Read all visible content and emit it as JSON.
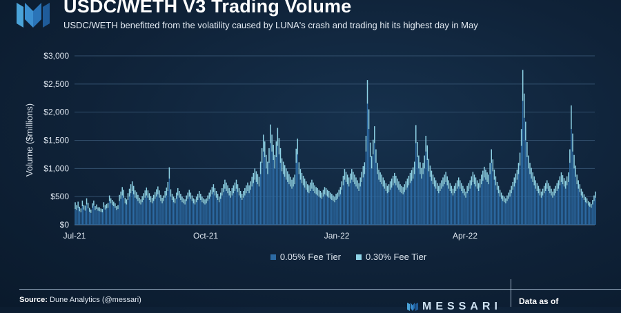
{
  "header": {
    "title": "USDC/WETH V3 Trading Volume",
    "subtitle": "USDC/WETH benefitted from the volatility caused by LUNA's crash and trading hit its highest day in May"
  },
  "colors": {
    "fee_005": "#2c6aa3",
    "fee_030": "#8fd3e6",
    "grid": "#33506e",
    "text": "#dfe7f0"
  },
  "footer": {
    "source_label": "Source:",
    "source_text": "Dune Analytics (@messari)",
    "brand": "MESSARI",
    "date_label": "Data as of"
  },
  "chart_data": {
    "type": "bar",
    "stacked": true,
    "ylabel": "Volume ($millions)",
    "ylim": [
      0,
      3000
    ],
    "yticks": [
      "$0",
      "$500",
      "$1,000",
      "$1,500",
      "$2,000",
      "$2,500",
      "$3,000"
    ],
    "ytick_values": [
      0,
      500,
      1000,
      1500,
      2000,
      2500,
      3000
    ],
    "x_ticks": [
      {
        "label": "Jul-21",
        "date": "2021-07-01"
      },
      {
        "label": "Oct-21",
        "date": "2021-10-01"
      },
      {
        "label": "Jan-22",
        "date": "2022-01-01"
      },
      {
        "label": "Apr-22",
        "date": "2022-04-01"
      }
    ],
    "x_range": [
      "2021-07-01",
      "2022-06-30"
    ],
    "grid": true,
    "legend_position": "bottom-center",
    "series": [
      {
        "name": "0.05% Fee Tier",
        "color": "#2c6aa3"
      },
      {
        "name": "0.30% Fee Tier",
        "color": "#8fd3e6"
      }
    ],
    "monthly_profile": [
      {
        "month": "2021-07",
        "fee_005": [
          280,
          260,
          300,
          240,
          220,
          330,
          270,
          250,
          360,
          290,
          230,
          210,
          300,
          340,
          260,
          280,
          250,
          240,
          230,
          220,
          310,
          270,
          290,
          300,
          420,
          380,
          350,
          330,
          300,
          260,
          280
        ],
        "fee_030": [
          120,
          90,
          110,
          80,
          70,
          100,
          80,
          90,
          110,
          100,
          70,
          60,
          80,
          90,
          70,
          80,
          60,
          70,
          60,
          60,
          90,
          80,
          80,
          90,
          100,
          90,
          90,
          80,
          80,
          70,
          70
        ]
      },
      {
        "month": "2021-08",
        "fee_005": [
          420,
          460,
          520,
          480,
          380,
          360,
          440,
          500,
          560,
          600,
          540,
          480,
          460,
          420,
          380,
          360,
          400,
          440,
          480,
          520,
          480,
          440,
          400,
          380,
          420,
          460,
          500,
          540,
          480,
          420,
          380
        ],
        "fee_030": [
          110,
          130,
          150,
          140,
          100,
          90,
          120,
          140,
          160,
          170,
          150,
          130,
          120,
          110,
          100,
          90,
          110,
          120,
          130,
          140,
          130,
          120,
          110,
          100,
          110,
          120,
          130,
          140,
          130,
          110,
          100
        ]
      },
      {
        "month": "2021-09",
        "fee_005": [
          420,
          480,
          520,
          600,
          820,
          500,
          440,
          400,
          380,
          460,
          520,
          480,
          440,
          400,
          380,
          360,
          420,
          460,
          500,
          460,
          420,
          380,
          360,
          400,
          440,
          480,
          440,
          400,
          380,
          360
        ],
        "fee_030": [
          100,
          120,
          140,
          160,
          200,
          130,
          110,
          100,
          90,
          110,
          130,
          120,
          110,
          100,
          90,
          90,
          100,
          110,
          120,
          110,
          100,
          90,
          90,
          100,
          110,
          120,
          110,
          100,
          90,
          90
        ]
      },
      {
        "month": "2021-10",
        "fee_005": [
          380,
          420,
          460,
          500,
          540,
          580,
          520,
          480,
          440,
          400,
          460,
          520,
          580,
          640,
          600,
          560,
          520,
          480,
          520,
          560,
          600,
          640,
          580,
          520,
          480,
          440,
          480,
          520,
          560,
          600,
          560
        ],
        "fee_030": [
          90,
          100,
          110,
          120,
          130,
          140,
          130,
          120,
          110,
          100,
          110,
          130,
          140,
          160,
          150,
          140,
          130,
          120,
          130,
          140,
          150,
          160,
          140,
          130,
          120,
          110,
          120,
          130,
          140,
          150,
          140
        ]
      },
      {
        "month": "2021-11",
        "fee_005": [
          620,
          680,
          740,
          800,
          760,
          720,
          680,
          900,
          1100,
          1300,
          1200,
          1000,
          900,
          1100,
          1450,
          1300,
          1150,
          1000,
          1200,
          1400,
          1250,
          1100,
          950,
          900,
          850,
          800,
          760,
          720,
          680,
          640
        ],
        "fee_030": [
          150,
          170,
          180,
          200,
          190,
          180,
          170,
          220,
          260,
          300,
          280,
          240,
          220,
          260,
          330,
          300,
          270,
          240,
          280,
          320,
          290,
          260,
          230,
          220,
          210,
          200,
          190,
          180,
          170,
          160
        ]
      },
      {
        "month": "2021-12",
        "fee_005": [
          680,
          720,
          1100,
          1250,
          900,
          800,
          740,
          700,
          660,
          620,
          580,
          560,
          600,
          640,
          600,
          560,
          540,
          520,
          500,
          480,
          460,
          500,
          540,
          520,
          500,
          480,
          460,
          440,
          420,
          400,
          440
        ],
        "fee_030": [
          160,
          170,
          250,
          280,
          210,
          190,
          180,
          170,
          160,
          150,
          140,
          140,
          150,
          160,
          150,
          140,
          130,
          130,
          120,
          120,
          110,
          120,
          130,
          130,
          120,
          120,
          110,
          110,
          100,
          100,
          110
        ]
      },
      {
        "month": "2022-01",
        "fee_005": [
          460,
          500,
          540,
          620,
          700,
          800,
          760,
          720,
          680,
          740,
          800,
          760,
          720,
          680,
          640,
          600,
          680,
          760,
          840,
          900,
          1300,
          2150,
          1700,
          1200,
          1000,
          1250,
          1450,
          1100,
          900,
          800,
          760
        ],
        "fee_030": [
          110,
          120,
          130,
          150,
          170,
          190,
          180,
          170,
          160,
          170,
          190,
          180,
          170,
          160,
          150,
          140,
          160,
          180,
          200,
          210,
          280,
          420,
          350,
          260,
          220,
          260,
          300,
          240,
          200,
          180,
          170
        ]
      },
      {
        "month": "2022-02",
        "fee_005": [
          720,
          680,
          640,
          600,
          560,
          580,
          620,
          660,
          700,
          740,
          700,
          660,
          620,
          580,
          560,
          540,
          580,
          620,
          660,
          700,
          740,
          780,
          820,
          900,
          1450,
          1200,
          1000,
          900,
          820
        ],
        "fee_030": [
          170,
          160,
          150,
          140,
          130,
          140,
          150,
          160,
          170,
          180,
          170,
          160,
          150,
          140,
          130,
          130,
          140,
          150,
          160,
          170,
          180,
          190,
          200,
          220,
          320,
          270,
          230,
          210,
          190
        ]
      },
      {
        "month": "2022-03",
        "fee_005": [
          900,
          1000,
          1300,
          1150,
          950,
          850,
          780,
          720,
          680,
          640,
          600,
          560,
          600,
          640,
          680,
          720,
          760,
          700,
          640,
          600,
          560,
          520,
          560,
          600,
          640,
          680,
          640,
          600,
          560,
          520,
          480
        ],
        "fee_030": [
          200,
          230,
          280,
          260,
          220,
          200,
          180,
          170,
          160,
          150,
          140,
          130,
          140,
          150,
          160,
          170,
          180,
          160,
          150,
          140,
          130,
          120,
          130,
          140,
          150,
          160,
          150,
          140,
          130,
          120,
          110
        ]
      },
      {
        "month": "2022-04",
        "fee_005": [
          560,
          600,
          640,
          700,
          760,
          720,
          680,
          640,
          600,
          660,
          720,
          780,
          840,
          800,
          760,
          720,
          900,
          1100,
          950,
          800,
          700,
          620,
          560,
          500,
          460,
          420,
          400,
          380,
          420,
          460
        ],
        "fee_030": [
          130,
          140,
          150,
          160,
          180,
          170,
          160,
          150,
          140,
          150,
          170,
          180,
          190,
          180,
          170,
          170,
          200,
          240,
          210,
          180,
          160,
          140,
          130,
          120,
          110,
          100,
          100,
          90,
          100,
          110
        ]
      },
      {
        "month": "2022-05",
        "fee_005": [
          500,
          560,
          620,
          680,
          740,
          800,
          900,
          1050,
          1400,
          2200,
          1900,
          1500,
          1200,
          1000,
          900,
          820,
          760,
          700,
          640,
          600,
          560,
          520,
          480,
          520,
          560,
          600,
          640,
          600,
          560,
          520,
          480
        ],
        "fee_030": [
          120,
          130,
          140,
          160,
          170,
          180,
          200,
          230,
          300,
          550,
          430,
          330,
          270,
          230,
          200,
          190,
          170,
          160,
          150,
          140,
          130,
          120,
          110,
          120,
          130,
          140,
          150,
          140,
          130,
          120,
          110
        ]
      },
      {
        "month": "2022-06",
        "fee_005": [
          520,
          560,
          600,
          640,
          700,
          760,
          720,
          680,
          640,
          700,
          760,
          1100,
          1700,
          1300,
          1000,
          850,
          720,
          640,
          580,
          520,
          480,
          440,
          400,
          380,
          340,
          320,
          300,
          360,
          420,
          480
        ],
        "fee_030": [
          120,
          130,
          140,
          150,
          160,
          170,
          160,
          150,
          140,
          160,
          170,
          240,
          420,
          320,
          240,
          200,
          170,
          150,
          140,
          120,
          110,
          100,
          90,
          90,
          80,
          80,
          70,
          80,
          100,
          110
        ]
      }
    ]
  }
}
